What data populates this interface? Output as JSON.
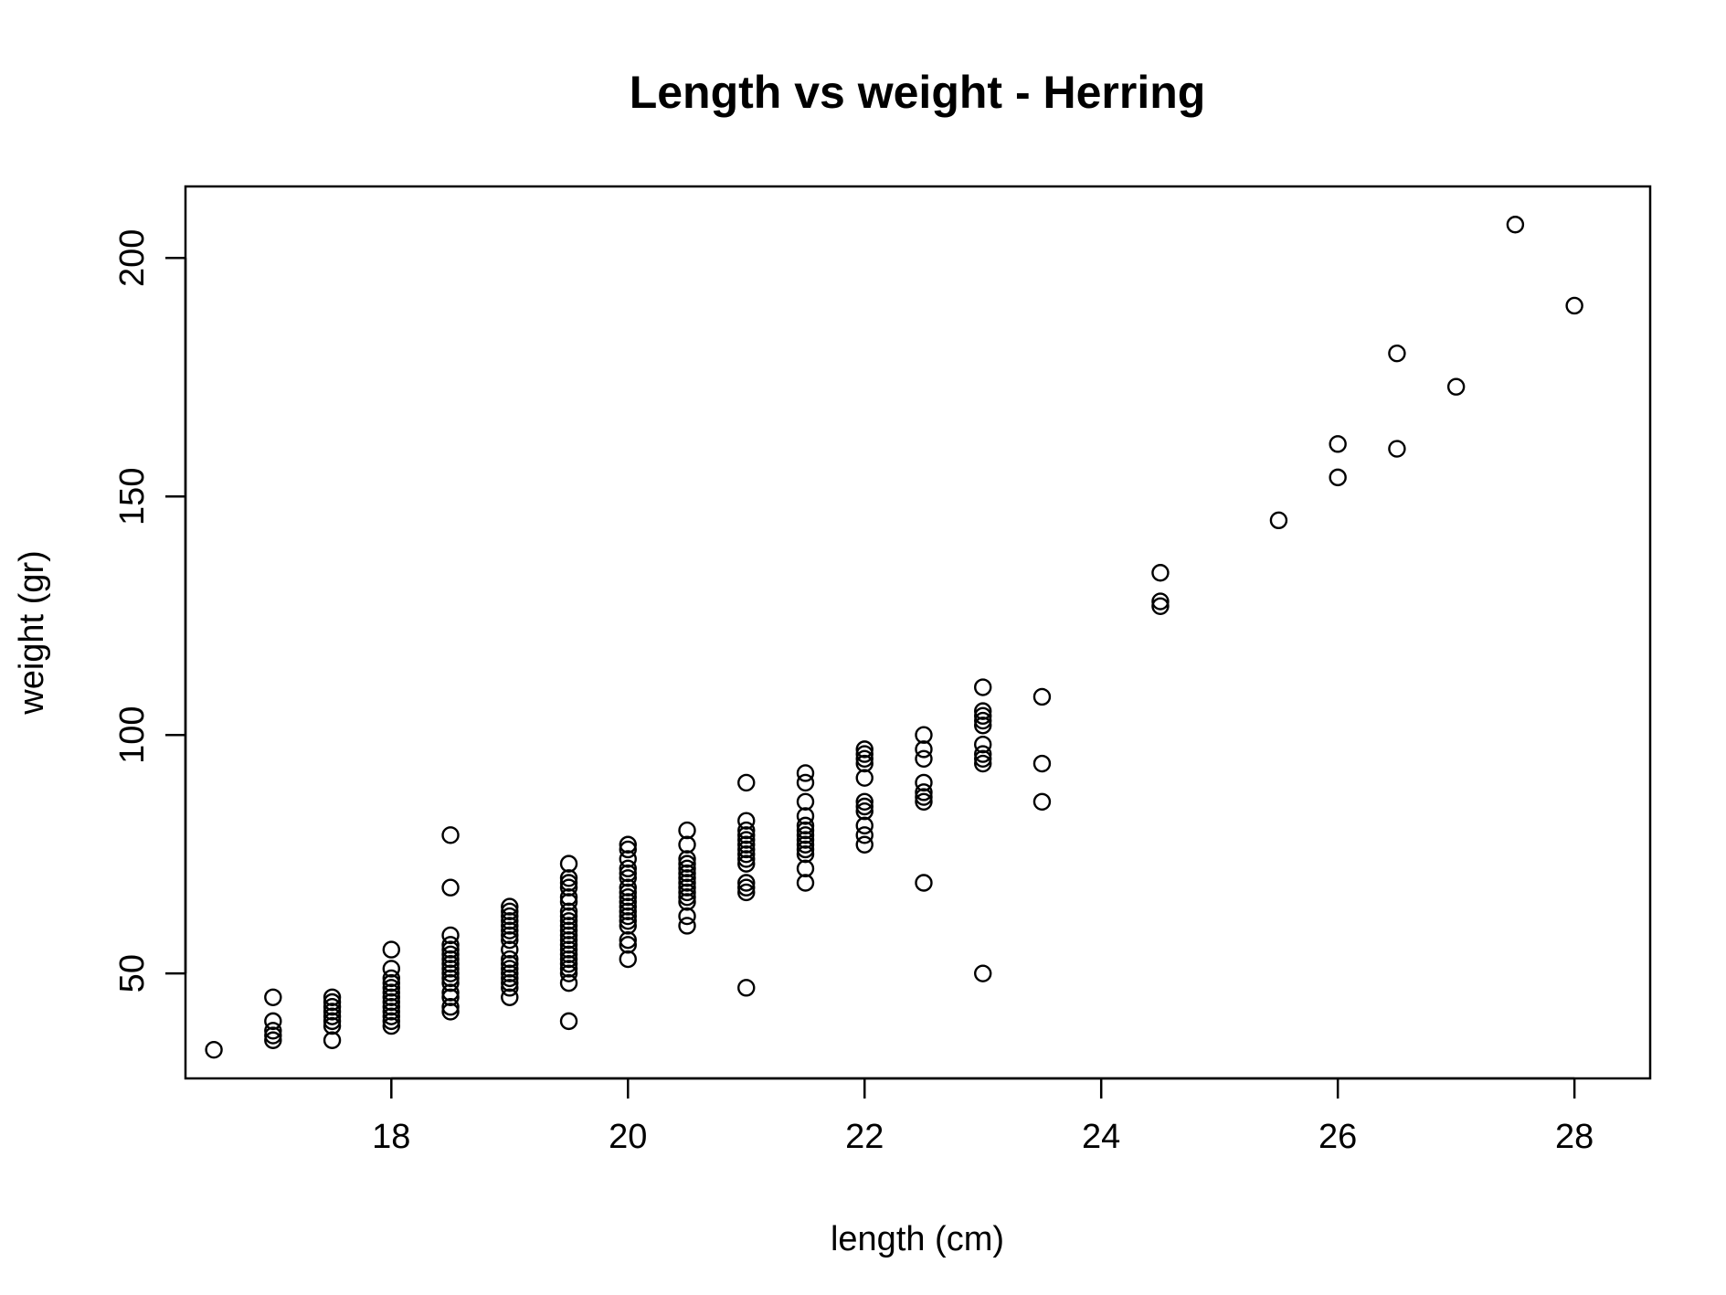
{
  "chart_data": {
    "type": "scatter",
    "title": "Length vs weight - Herring",
    "xlabel": "length (cm)",
    "ylabel": "weight (gr)",
    "xlim": [
      16.26,
      28.64
    ],
    "ylim": [
      28,
      215
    ],
    "xticks": [
      18,
      20,
      22,
      24,
      26,
      28
    ],
    "yticks": [
      50,
      100,
      150,
      200
    ],
    "grid": false,
    "legend": "none",
    "marker": "open-circle",
    "series": [
      {
        "name": "Herring",
        "points": [
          [
            16.5,
            34
          ],
          [
            17,
            36
          ],
          [
            17,
            37
          ],
          [
            17,
            38
          ],
          [
            17,
            40
          ],
          [
            17,
            45
          ],
          [
            17.5,
            36
          ],
          [
            17.5,
            39
          ],
          [
            17.5,
            40
          ],
          [
            17.5,
            41
          ],
          [
            17.5,
            42
          ],
          [
            17.5,
            43
          ],
          [
            17.5,
            44
          ],
          [
            17.5,
            45
          ],
          [
            18,
            39
          ],
          [
            18,
            40
          ],
          [
            18,
            41
          ],
          [
            18,
            42
          ],
          [
            18,
            43
          ],
          [
            18,
            44
          ],
          [
            18,
            45
          ],
          [
            18,
            46
          ],
          [
            18,
            47
          ],
          [
            18,
            48
          ],
          [
            18,
            49
          ],
          [
            18,
            51
          ],
          [
            18,
            55
          ],
          [
            18.5,
            42
          ],
          [
            18.5,
            43
          ],
          [
            18.5,
            45
          ],
          [
            18.5,
            46
          ],
          [
            18.5,
            48
          ],
          [
            18.5,
            49
          ],
          [
            18.5,
            50
          ],
          [
            18.5,
            51
          ],
          [
            18.5,
            52
          ],
          [
            18.5,
            53
          ],
          [
            18.5,
            54
          ],
          [
            18.5,
            55
          ],
          [
            18.5,
            56
          ],
          [
            18.5,
            58
          ],
          [
            18.5,
            68
          ],
          [
            18.5,
            79
          ],
          [
            19,
            45
          ],
          [
            19,
            47
          ],
          [
            19,
            48
          ],
          [
            19,
            49
          ],
          [
            19,
            50
          ],
          [
            19,
            51
          ],
          [
            19,
            52
          ],
          [
            19,
            53
          ],
          [
            19,
            55
          ],
          [
            19,
            57
          ],
          [
            19,
            58
          ],
          [
            19,
            59
          ],
          [
            19,
            60
          ],
          [
            19,
            61
          ],
          [
            19,
            62
          ],
          [
            19,
            63
          ],
          [
            19,
            64
          ],
          [
            19.5,
            40
          ],
          [
            19.5,
            48
          ],
          [
            19.5,
            50
          ],
          [
            19.5,
            51
          ],
          [
            19.5,
            52
          ],
          [
            19.5,
            53
          ],
          [
            19.5,
            54
          ],
          [
            19.5,
            55
          ],
          [
            19.5,
            56
          ],
          [
            19.5,
            57
          ],
          [
            19.5,
            58
          ],
          [
            19.5,
            59
          ],
          [
            19.5,
            60
          ],
          [
            19.5,
            61
          ],
          [
            19.5,
            62
          ],
          [
            19.5,
            63
          ],
          [
            19.5,
            65
          ],
          [
            19.5,
            66
          ],
          [
            19.5,
            68
          ],
          [
            19.5,
            69
          ],
          [
            19.5,
            70
          ],
          [
            19.5,
            73
          ],
          [
            20,
            53
          ],
          [
            20,
            56
          ],
          [
            20,
            57
          ],
          [
            20,
            60
          ],
          [
            20,
            61
          ],
          [
            20,
            62
          ],
          [
            20,
            63
          ],
          [
            20,
            64
          ],
          [
            20,
            65
          ],
          [
            20,
            66
          ],
          [
            20,
            67
          ],
          [
            20,
            68
          ],
          [
            20,
            70
          ],
          [
            20,
            71
          ],
          [
            20,
            72
          ],
          [
            20,
            74
          ],
          [
            20,
            76
          ],
          [
            20,
            77
          ],
          [
            20.5,
            60
          ],
          [
            20.5,
            62
          ],
          [
            20.5,
            65
          ],
          [
            20.5,
            66
          ],
          [
            20.5,
            67
          ],
          [
            20.5,
            68
          ],
          [
            20.5,
            69
          ],
          [
            20.5,
            70
          ],
          [
            20.5,
            71
          ],
          [
            20.5,
            72
          ],
          [
            20.5,
            73
          ],
          [
            20.5,
            74
          ],
          [
            20.5,
            77
          ],
          [
            20.5,
            80
          ],
          [
            21,
            47
          ],
          [
            21,
            67
          ],
          [
            21,
            68
          ],
          [
            21,
            69
          ],
          [
            21,
            73
          ],
          [
            21,
            74
          ],
          [
            21,
            75
          ],
          [
            21,
            76
          ],
          [
            21,
            77
          ],
          [
            21,
            78
          ],
          [
            21,
            79
          ],
          [
            21,
            80
          ],
          [
            21,
            82
          ],
          [
            21,
            90
          ],
          [
            21.5,
            69
          ],
          [
            21.5,
            72
          ],
          [
            21.5,
            75
          ],
          [
            21.5,
            76
          ],
          [
            21.5,
            77
          ],
          [
            21.5,
            78
          ],
          [
            21.5,
            79
          ],
          [
            21.5,
            80
          ],
          [
            21.5,
            81
          ],
          [
            21.5,
            83
          ],
          [
            21.5,
            86
          ],
          [
            21.5,
            90
          ],
          [
            21.5,
            92
          ],
          [
            22,
            77
          ],
          [
            22,
            79
          ],
          [
            22,
            81
          ],
          [
            22,
            84
          ],
          [
            22,
            85
          ],
          [
            22,
            86
          ],
          [
            22,
            91
          ],
          [
            22,
            94
          ],
          [
            22,
            95
          ],
          [
            22,
            96
          ],
          [
            22,
            97
          ],
          [
            22.5,
            69
          ],
          [
            22.5,
            86
          ],
          [
            22.5,
            87
          ],
          [
            22.5,
            88
          ],
          [
            22.5,
            90
          ],
          [
            22.5,
            95
          ],
          [
            22.5,
            97
          ],
          [
            22.5,
            100
          ],
          [
            23,
            50
          ],
          [
            23,
            94
          ],
          [
            23,
            95
          ],
          [
            23,
            96
          ],
          [
            23,
            98
          ],
          [
            23,
            102
          ],
          [
            23,
            103
          ],
          [
            23,
            104
          ],
          [
            23,
            105
          ],
          [
            23,
            110
          ],
          [
            23.5,
            86
          ],
          [
            23.5,
            94
          ],
          [
            23.5,
            108
          ],
          [
            24.5,
            127
          ],
          [
            24.5,
            128
          ],
          [
            24.5,
            134
          ],
          [
            25.5,
            145
          ],
          [
            26,
            154
          ],
          [
            26,
            161
          ],
          [
            26.5,
            160
          ],
          [
            26.5,
            180
          ],
          [
            27,
            173
          ],
          [
            27.5,
            207
          ],
          [
            28,
            190
          ]
        ]
      }
    ]
  }
}
